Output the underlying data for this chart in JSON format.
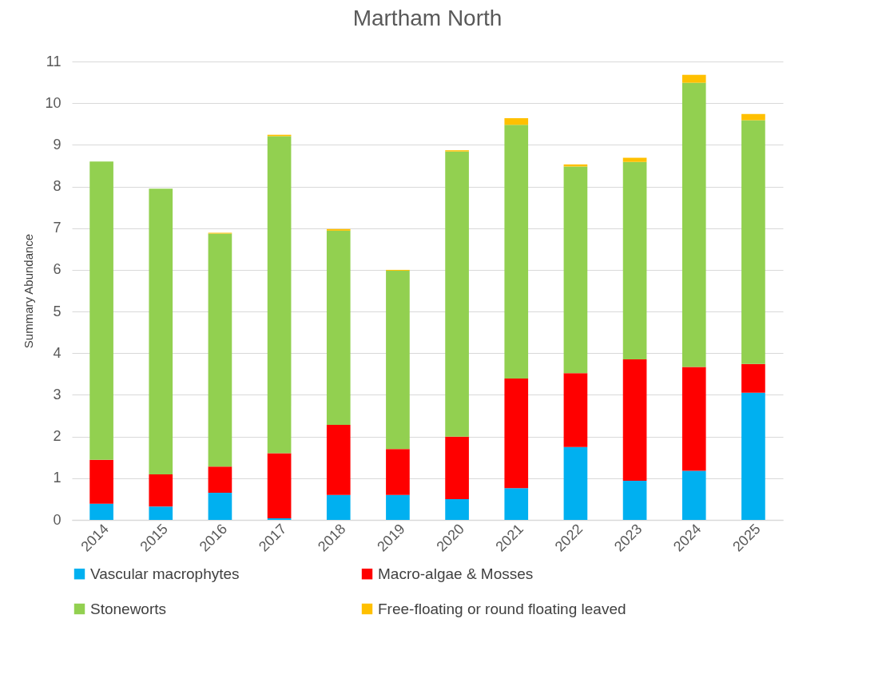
{
  "chart_data": {
    "type": "bar",
    "title": "Martham North",
    "ylabel": "Summary Abundance",
    "stacked": true,
    "categories": [
      "2014",
      "2015",
      "2016",
      "2017",
      "2018",
      "2019",
      "2020",
      "2021",
      "2022",
      "2023",
      "2024",
      "2025"
    ],
    "series": [
      {
        "name": "Vascular macrophytes",
        "color": "#00b0f0",
        "values": [
          0.39,
          0.32,
          0.65,
          0.04,
          0.6,
          0.6,
          0.5,
          0.76,
          1.75,
          0.94,
          1.18,
          3.05
        ]
      },
      {
        "name": "Macro-algae & Mosses",
        "color": "#ff0000",
        "values": [
          1.05,
          0.77,
          0.63,
          1.56,
          1.68,
          1.1,
          1.5,
          2.63,
          1.77,
          2.91,
          2.49,
          0.69
        ]
      },
      {
        "name": "Stoneworts",
        "color": "#92d050",
        "values": [
          7.16,
          6.86,
          5.59,
          7.61,
          4.66,
          4.28,
          6.84,
          6.09,
          4.96,
          4.74,
          6.82,
          5.85
        ]
      },
      {
        "name": "Free-floating or round floating leaved",
        "color": "#ffc000",
        "values": [
          0,
          0,
          0.02,
          0.03,
          0.04,
          0.02,
          0.03,
          0.16,
          0.05,
          0.1,
          0.19,
          0.15
        ]
      }
    ],
    "ylim": [
      0,
      11
    ],
    "yticks": [
      0,
      1,
      2,
      3,
      4,
      5,
      6,
      7,
      8,
      9,
      10,
      11
    ],
    "grid": "y",
    "legend": "bottom"
  }
}
